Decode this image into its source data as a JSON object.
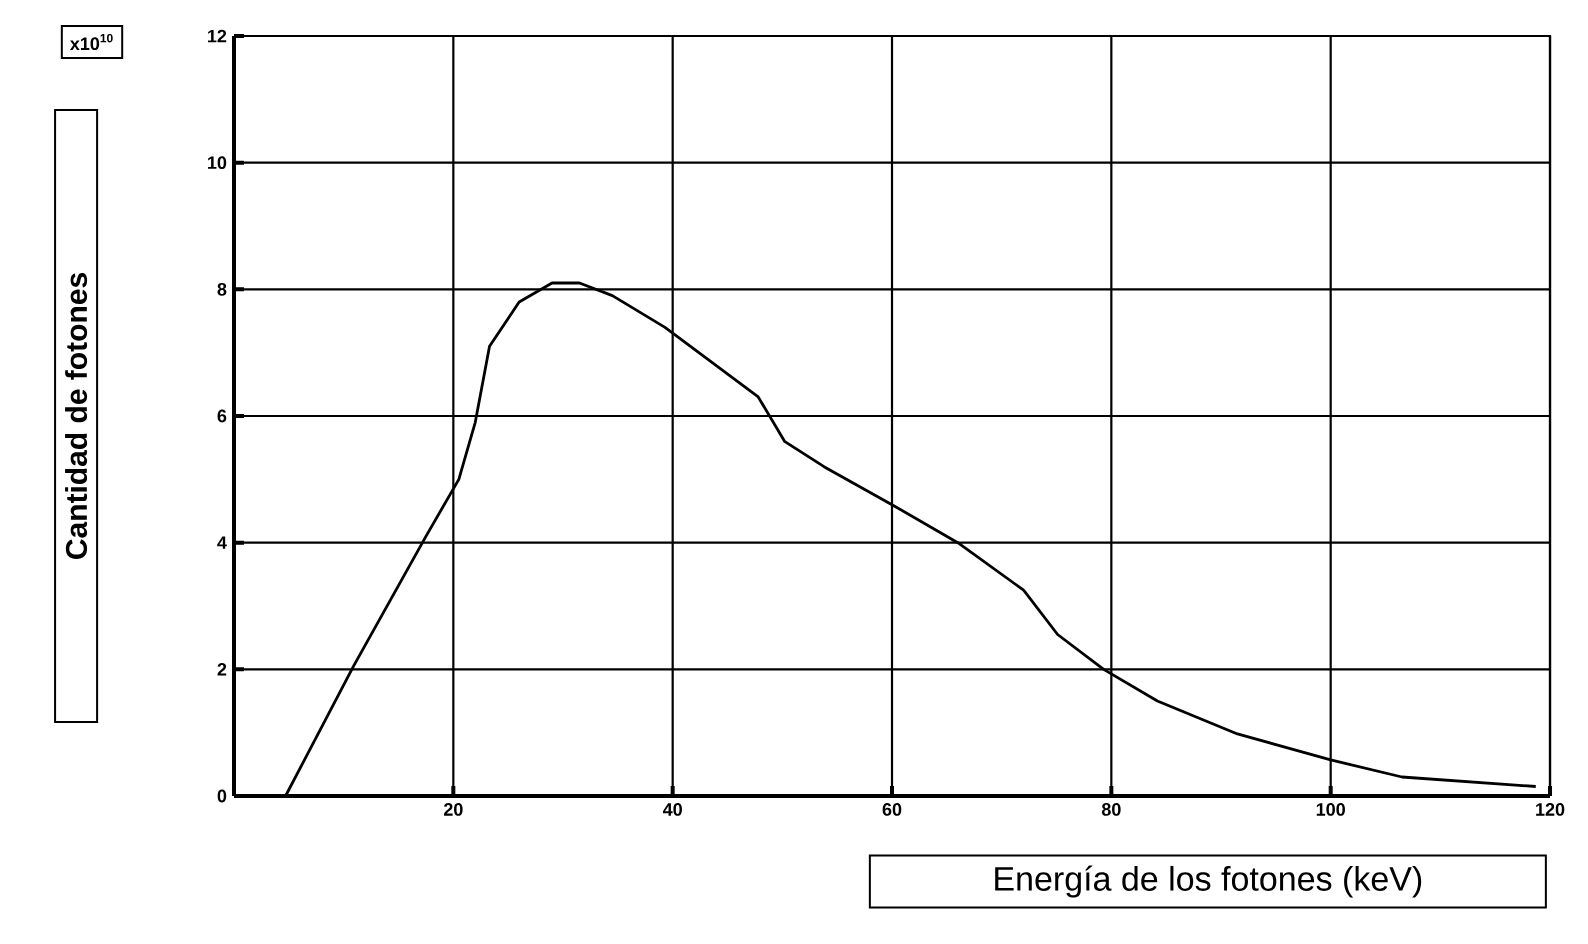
{
  "chart_data": {
    "type": "line",
    "xlabel": "Energía de los fotones (keV)",
    "ylabel": "Cantidad de fotones",
    "annotations": [
      "x10$^{10}$"
    ],
    "x": [
      4.7,
      10.9,
      17.5,
      20.5,
      22,
      23.3,
      26,
      29,
      31.5,
      34.5,
      39.3,
      47.8,
      50.2,
      53.8,
      60,
      66,
      72,
      75.1,
      79.3,
      84.2,
      91.5,
      100,
      106.5,
      118.7
    ],
    "series": [
      {
        "color": "#000000",
        "values": [
          0,
          2.05,
          4.1,
          5.0,
          5.9,
          7.1,
          7.8,
          8.1,
          8.1,
          7.9,
          7.4,
          6.3,
          5.6,
          5.2,
          4.6,
          4.0,
          3.25,
          2.55,
          2.0,
          1.5,
          0.98,
          0.57,
          0.3,
          0.15
        ]
      }
    ],
    "xlim": [
      0,
      120
    ],
    "ylim": [
      0,
      12
    ],
    "xticks": [
      20,
      40,
      60,
      80,
      100,
      120
    ],
    "yticks": [
      0,
      2,
      4,
      6,
      8,
      10,
      12
    ],
    "grid": true,
    "marker": "none",
    "line_style": "solid"
  }
}
